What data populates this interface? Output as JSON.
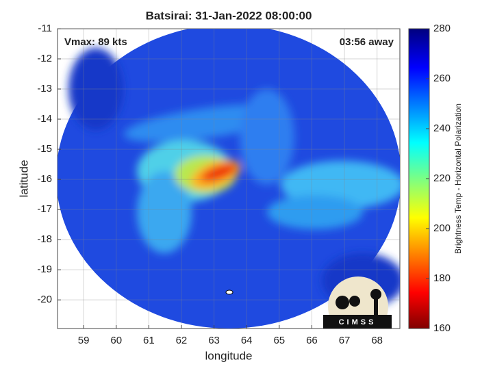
{
  "chart_data": {
    "type": "image",
    "title": "Batsirai: 31-Jan-2022 08:00:00",
    "xlabel": "longitude",
    "ylabel": "latitude",
    "annotations": [
      "Vmax: 89 kts",
      "03:56 away"
    ],
    "xlim": [
      58.2,
      68.7
    ],
    "xticks": [
      59,
      60,
      61,
      62,
      63,
      64,
      65,
      66,
      67,
      68
    ],
    "ylim": [
      -20.95,
      -11
    ],
    "yticks": [
      -11,
      -12,
      -13,
      -14,
      -15,
      -16,
      -17,
      -18,
      -19,
      -20
    ],
    "grid": true,
    "colorbar": {
      "label": "Brightness Temp - Horizontal Polarization",
      "colormap": "jet",
      "clim": [
        160,
        280
      ],
      "ticks": [
        160,
        180,
        200,
        220,
        240,
        260,
        280
      ]
    },
    "logo": "CIMSS"
  }
}
